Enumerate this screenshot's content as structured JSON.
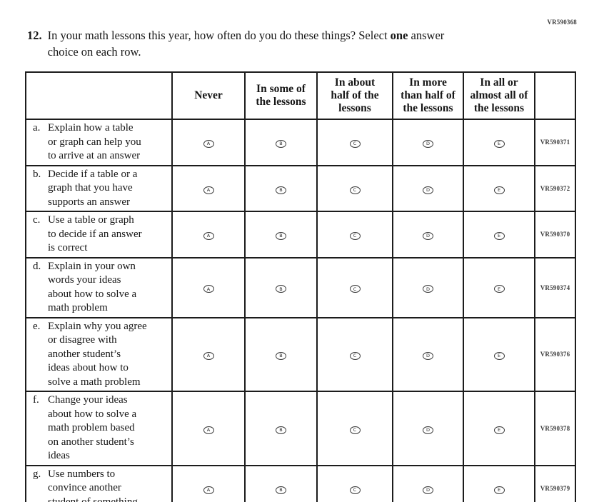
{
  "page": {
    "form_code": "VR590368"
  },
  "question": {
    "number": "12.",
    "text_before": "In your math lessons this year, how often do you do these things? Select ",
    "bold_word": "one",
    "text_after": " answer\nchoice on each row."
  },
  "table": {
    "columns": [
      "",
      "Never",
      "In some of\nthe lessons",
      "In about\nhalf of the\nlessons",
      "In more\nthan half of\nthe lessons",
      "In all or\nalmost all of\nthe lessons",
      ""
    ],
    "options": [
      "A",
      "B",
      "C",
      "D",
      "E"
    ],
    "rows": [
      {
        "letter": "a.",
        "label": "Explain how a table\nor graph can help you\nto arrive at an answer",
        "vr": "VR590371"
      },
      {
        "letter": "b.",
        "label": "Decide if a table or a\ngraph that you have\nsupports an answer",
        "vr": "VR590372"
      },
      {
        "letter": "c.",
        "label": "Use a table or graph\nto decide if an answer\nis correct",
        "vr": "VR590370"
      },
      {
        "letter": "d.",
        "label": "Explain in your own\nwords your ideas\nabout how to solve a\nmath problem",
        "vr": "VR590374"
      },
      {
        "letter": "e.",
        "label": "Explain why you agree\nor disagree with\nanother student’s\nideas about how to\nsolve a math problem",
        "vr": "VR590376"
      },
      {
        "letter": "f.",
        "label": "Change your ideas\nabout how to solve a\nmath problem based\non another student’s\nideas",
        "vr": "VR590378"
      },
      {
        "letter": "g.",
        "label": "Use numbers to\nconvince another\nstudent of something",
        "vr": "VR590379"
      }
    ]
  }
}
